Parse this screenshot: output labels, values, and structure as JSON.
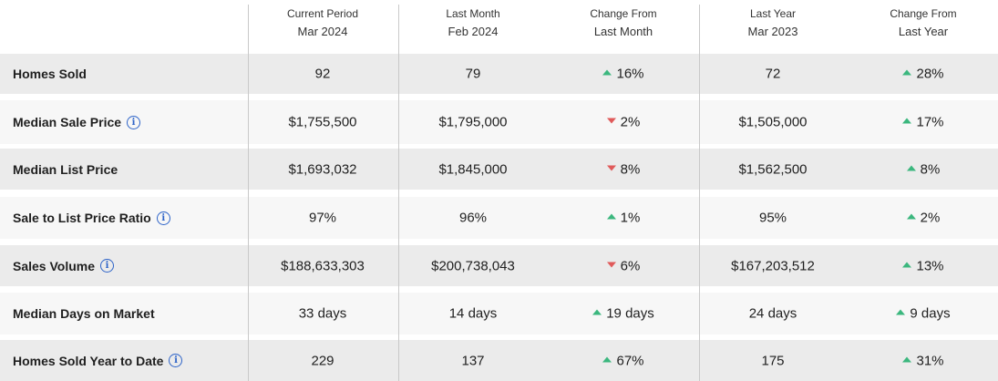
{
  "columns": [
    {
      "line1": "Current Period",
      "line2": "Mar 2024"
    },
    {
      "line1": "Last Month",
      "line2": "Feb 2024"
    },
    {
      "line1": "Change From",
      "line2": "Last Month"
    },
    {
      "line1": "Last Year",
      "line2": "Mar 2023"
    },
    {
      "line1": "Change From",
      "line2": "Last Year"
    }
  ],
  "rows": [
    {
      "label": "Homes Sold",
      "info": false,
      "current": "92",
      "last_month": "79",
      "chg_month": "16%",
      "chg_month_dir": "up",
      "last_year": "72",
      "chg_year": "28%",
      "chg_year_dir": "up"
    },
    {
      "label": "Median Sale Price",
      "info": true,
      "current": "$1,755,500",
      "last_month": "$1,795,000",
      "chg_month": "2%",
      "chg_month_dir": "down",
      "last_year": "$1,505,000",
      "chg_year": "17%",
      "chg_year_dir": "up"
    },
    {
      "label": "Median List Price",
      "info": false,
      "current": "$1,693,032",
      "last_month": "$1,845,000",
      "chg_month": "8%",
      "chg_month_dir": "down",
      "last_year": "$1,562,500",
      "chg_year": "8%",
      "chg_year_dir": "up"
    },
    {
      "label": "Sale to List Price Ratio",
      "info": true,
      "current": "97%",
      "last_month": "96%",
      "chg_month": "1%",
      "chg_month_dir": "up",
      "last_year": "95%",
      "chg_year": "2%",
      "chg_year_dir": "up"
    },
    {
      "label": "Sales Volume",
      "info": true,
      "current": "$188,633,303",
      "last_month": "$200,738,043",
      "chg_month": "6%",
      "chg_month_dir": "down",
      "last_year": "$167,203,512",
      "chg_year": "13%",
      "chg_year_dir": "up"
    },
    {
      "label": "Median Days on Market",
      "info": false,
      "current": "33 days",
      "last_month": "14 days",
      "chg_month": "19 days",
      "chg_month_dir": "up",
      "last_year": "24 days",
      "chg_year": "9 days",
      "chg_year_dir": "up"
    },
    {
      "label": "Homes Sold Year to Date",
      "info": true,
      "current": "229",
      "last_month": "137",
      "chg_month": "67%",
      "chg_month_dir": "up",
      "last_year": "175",
      "chg_year": "31%",
      "chg_year_dir": "up"
    }
  ],
  "colors": {
    "up": "#3bb77e",
    "down": "#e05a5a",
    "info": "#2d63c8"
  },
  "icons": {
    "info": "info-circle-icon",
    "up": "triangle-up-icon",
    "down": "triangle-down-icon"
  }
}
